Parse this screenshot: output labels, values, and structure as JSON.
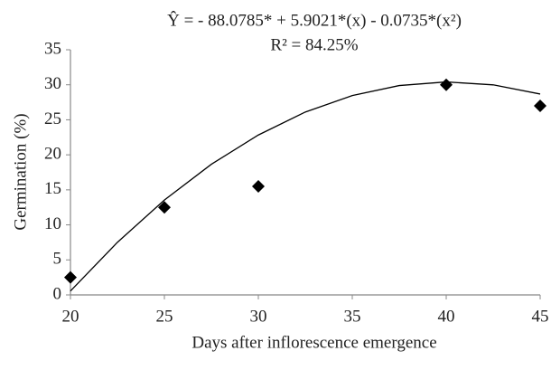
{
  "chart_data": {
    "type": "scatter",
    "title": "Ŷ = - 88.0785* + 5.9021*(x)  - 0.0735*(x²)",
    "subtitle": "R² = 84.25%",
    "x_label": "Days after inflorescence emergence",
    "y_label": "Germination (%)",
    "x": [
      20,
      25,
      30,
      40,
      45
    ],
    "values": [
      2.5,
      12.5,
      15.5,
      30,
      27
    ],
    "color": "#000000",
    "fit_curve": {
      "x": [
        20,
        22.5,
        25,
        27.5,
        30,
        32.5,
        35,
        37.5,
        40,
        42.5,
        45
      ],
      "values": [
        0.56,
        7.51,
        13.54,
        18.65,
        22.83,
        26.11,
        28.46,
        29.89,
        30.41,
        29.99,
        28.68
      ],
      "color": "#000000"
    },
    "xlim": [
      20,
      45
    ],
    "xticks": [
      20,
      25,
      30,
      35,
      40,
      45
    ],
    "ylim": [
      0,
      35
    ],
    "yticks": [
      0,
      5,
      10,
      15,
      20,
      25,
      30,
      35
    ]
  }
}
